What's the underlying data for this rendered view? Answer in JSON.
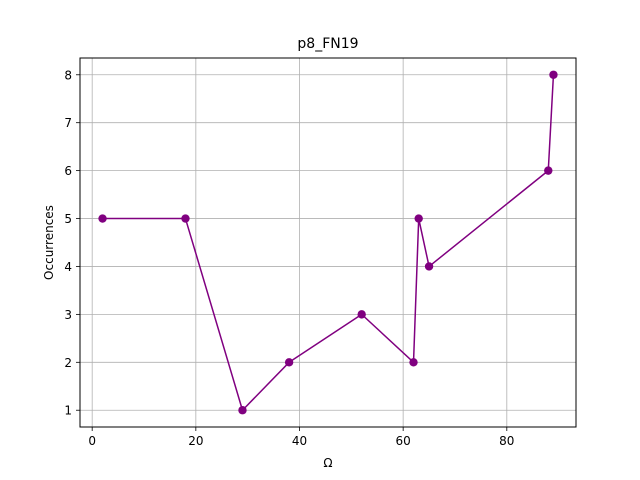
{
  "chart_data": {
    "type": "line",
    "title": "p8_FN19",
    "xlabel": "Ω",
    "ylabel": "Occurrences",
    "xlim": [
      -2.35,
      93.35
    ],
    "ylim": [
      0.65,
      8.35
    ],
    "xticks": [
      0,
      20,
      40,
      60,
      80
    ],
    "yticks": [
      1,
      2,
      3,
      4,
      5,
      6,
      7,
      8
    ],
    "grid": true,
    "series": [
      {
        "color": "#800080",
        "marker": "circle",
        "points": [
          {
            "x": 2,
            "y": 5
          },
          {
            "x": 18,
            "y": 5
          },
          {
            "x": 29,
            "y": 1
          },
          {
            "x": 38,
            "y": 2
          },
          {
            "x": 52,
            "y": 3
          },
          {
            "x": 62,
            "y": 2
          },
          {
            "x": 63,
            "y": 5
          },
          {
            "x": 65,
            "y": 4
          },
          {
            "x": 88,
            "y": 6
          },
          {
            "x": 89,
            "y": 8
          }
        ]
      }
    ]
  }
}
